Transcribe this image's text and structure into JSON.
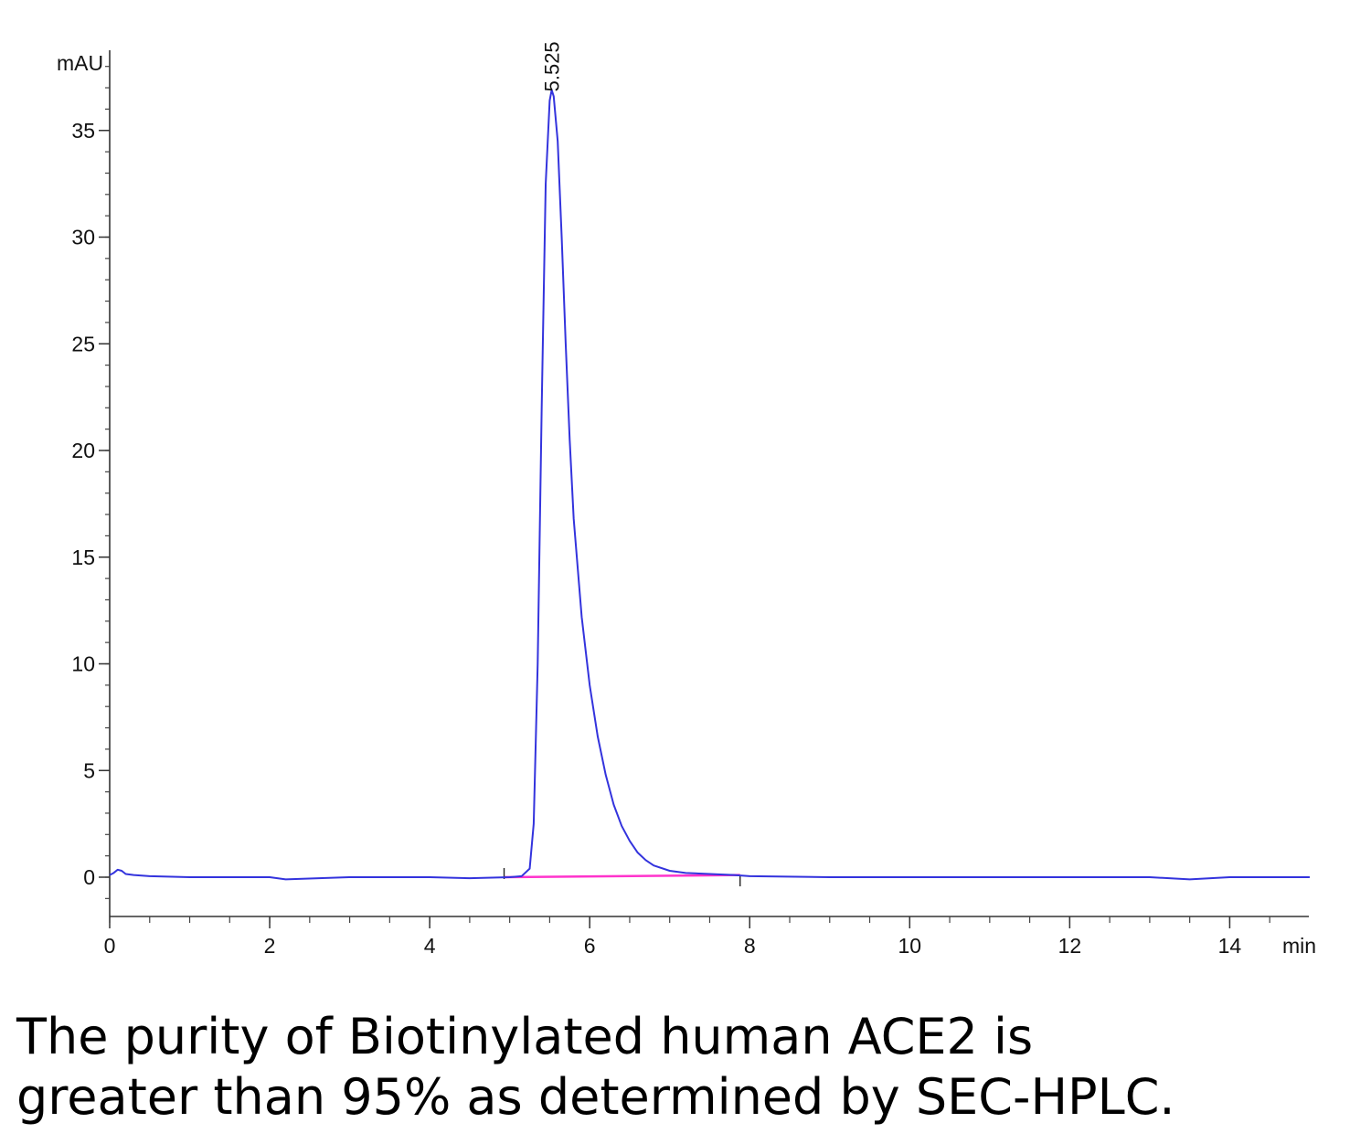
{
  "chart_data": {
    "type": "line",
    "ylabel": "mAU",
    "xlabel": "min",
    "xlim": [
      0,
      15
    ],
    "ylim": [
      -2,
      38
    ],
    "x_ticks": [
      0,
      2,
      4,
      6,
      8,
      10,
      12,
      14
    ],
    "y_ticks": [
      0,
      5,
      10,
      15,
      20,
      25,
      30,
      35
    ],
    "grid": false,
    "peak": {
      "label": "5.525",
      "x": 5.525,
      "y": 36.9
    },
    "integration_baseline": {
      "x": [
        4.93,
        7.88
      ],
      "y": [
        0,
        0.1
      ],
      "color": "#ff33cc"
    },
    "series": [
      {
        "color": "#3333dd",
        "x": [
          0,
          0.05,
          0.1,
          0.15,
          0.2,
          0.3,
          0.5,
          1.0,
          2.0,
          2.2,
          3.0,
          4.0,
          4.5,
          5.0,
          5.15,
          5.25,
          5.3,
          5.35,
          5.4,
          5.45,
          5.5,
          5.525,
          5.55,
          5.6,
          5.65,
          5.7,
          5.75,
          5.8,
          5.9,
          6.0,
          6.1,
          6.2,
          6.3,
          6.4,
          6.5,
          6.6,
          6.7,
          6.8,
          7.0,
          7.2,
          7.5,
          7.8,
          8.0,
          9.0,
          10.0,
          11.0,
          12.0,
          13.0,
          13.5,
          14.0,
          15.0
        ],
        "y": [
          0.1,
          0.2,
          0.35,
          0.3,
          0.15,
          0.1,
          0.05,
          0.0,
          0.0,
          -0.1,
          0.0,
          0.0,
          -0.05,
          0.0,
          0.05,
          0.4,
          2.5,
          10.0,
          22.0,
          32.5,
          36.4,
          36.9,
          36.6,
          34.5,
          30.0,
          25.0,
          20.5,
          16.8,
          12.2,
          9.0,
          6.6,
          4.8,
          3.4,
          2.4,
          1.7,
          1.15,
          0.8,
          0.55,
          0.3,
          0.2,
          0.15,
          0.1,
          0.05,
          0.0,
          0.0,
          0.0,
          0.0,
          0.0,
          -0.1,
          0.0,
          0.0
        ]
      }
    ]
  },
  "caption": {
    "line1": "The purity of Biotinylated human ACE2 is",
    "line2": "greater than 95% as determined by SEC-HPLC."
  }
}
